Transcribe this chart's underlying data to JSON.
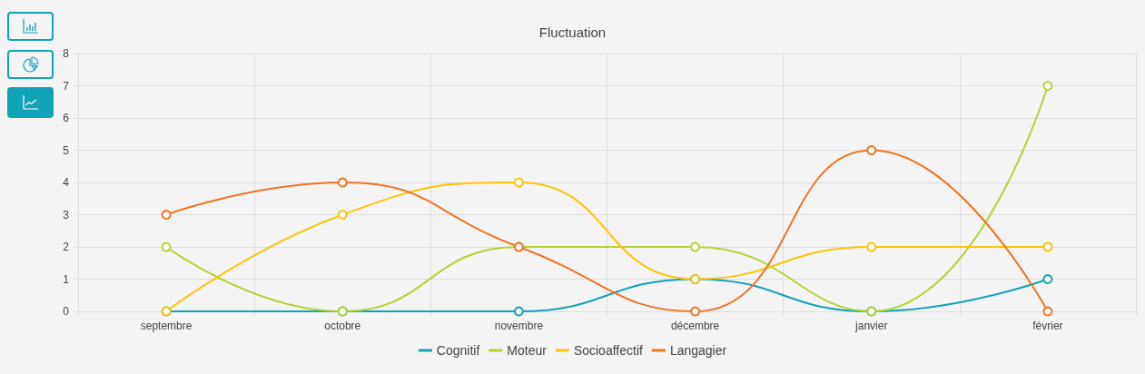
{
  "chart_data": {
    "type": "line",
    "title": "Fluctuation",
    "categories": [
      "septembre",
      "octobre",
      "novembre",
      "décembre",
      "janvier",
      "février"
    ],
    "series": [
      {
        "name": "Cognitif",
        "color": "#12a4b6",
        "values": [
          0,
          0,
          0,
          1,
          0,
          1
        ]
      },
      {
        "name": "Moteur",
        "color": "#b5d334",
        "values": [
          2,
          0,
          2,
          2,
          0,
          7
        ]
      },
      {
        "name": "Socioaffectif",
        "color": "#fcc40a",
        "values": [
          0,
          3,
          4,
          1,
          2,
          2
        ]
      },
      {
        "name": "Langagier",
        "color": "#f07423",
        "values": [
          3,
          4,
          2,
          0,
          5,
          0
        ]
      }
    ],
    "ylim": [
      0,
      8
    ],
    "yticks": [
      0,
      1,
      2,
      3,
      4,
      5,
      6,
      7,
      8
    ],
    "grid": true,
    "legend": "bottom",
    "marker": "circle",
    "line_style": "solid"
  }
}
